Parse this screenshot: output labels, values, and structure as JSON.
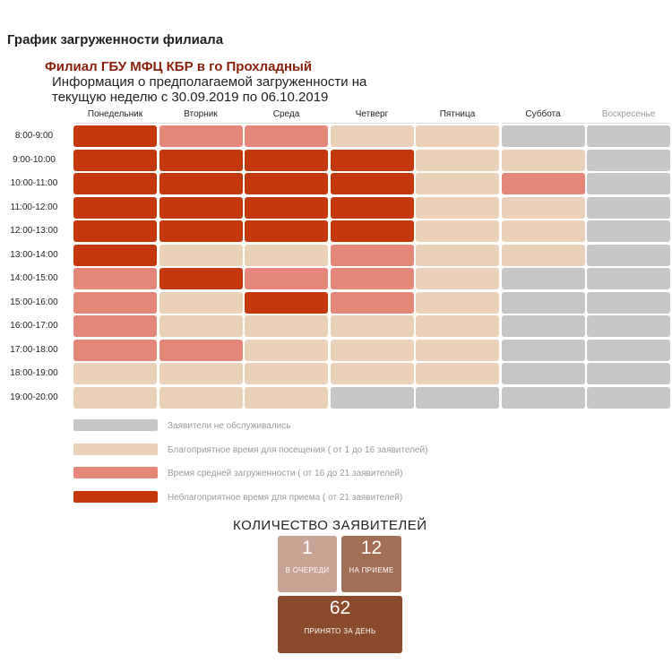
{
  "title": "График загруженности филиала",
  "branch": "Филиал ГБУ МФЦ КБР в го Прохладный",
  "info_line_1": "Информация о предполагаемой загруженности на",
  "info_line_2": "текущую неделю с 30.09.2019 по 06.10.2019",
  "days": [
    "Понедельник",
    "Вторник",
    "Среда",
    "Четверг",
    "Пятница",
    "Суббота",
    "Воскресенье"
  ],
  "times": [
    "8:00-9:00",
    "9:00-10:00",
    "10:00-11:00",
    "11:00-12:00",
    "12:00-13:00",
    "13:00-14:00",
    "14:00-15:00",
    "15:00-16:00",
    "16:00-17:00",
    "17:00-18:00",
    "18:00-19:00",
    "19:00-20:00"
  ],
  "load_grid": [
    [
      3,
      2,
      2,
      1,
      1,
      0,
      0
    ],
    [
      3,
      3,
      3,
      3,
      1,
      1,
      0
    ],
    [
      3,
      3,
      3,
      3,
      1,
      2,
      0
    ],
    [
      3,
      3,
      3,
      3,
      1,
      1,
      0
    ],
    [
      3,
      3,
      3,
      3,
      1,
      1,
      0
    ],
    [
      3,
      1,
      1,
      2,
      1,
      1,
      0
    ],
    [
      2,
      3,
      2,
      2,
      1,
      0,
      0
    ],
    [
      2,
      1,
      3,
      2,
      1,
      0,
      0
    ],
    [
      2,
      1,
      1,
      1,
      1,
      0,
      0
    ],
    [
      2,
      2,
      1,
      1,
      1,
      0,
      0
    ],
    [
      1,
      1,
      1,
      1,
      1,
      0,
      0
    ],
    [
      1,
      1,
      1,
      0,
      0,
      0,
      0
    ]
  ],
  "colors": {
    "level_0": "#c6c6c6",
    "level_1": "#ebd1b9",
    "level_2": "#e4867a",
    "level_3": "#c3380c"
  },
  "legend": [
    {
      "level": 0,
      "label": "Заявители не обслуживались"
    },
    {
      "level": 1,
      "label": "Благоприятное время для посещения ( от 1 до 16 заявителей)"
    },
    {
      "level": 2,
      "label": "Время средней загруженности ( от 16 до 21 заявителей)"
    },
    {
      "level": 3,
      "label": "Неблагоприятное время для приема ( от 21 заявителей)"
    }
  ],
  "counters": {
    "title": "КОЛИЧЕСТВО ЗАЯВИТЕЛЕЙ",
    "queue_value": "1",
    "queue_label": "В ОЧЕРЕДИ",
    "reception_value": "12",
    "reception_label": "НА ПРИЕМЕ",
    "day_value": "62",
    "day_label": "ПРИНЯТО ЗА ДЕНЬ"
  }
}
